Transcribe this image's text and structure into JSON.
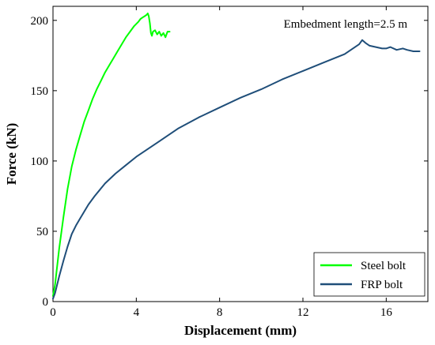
{
  "chart_data": {
    "type": "line",
    "title": "",
    "xlabel": "Displacement (mm)",
    "ylabel": "Force (kN)",
    "xlim": [
      0,
      18
    ],
    "ylim": [
      0,
      210
    ],
    "xticks": [
      0,
      4,
      8,
      12,
      16
    ],
    "yticks": [
      0,
      50,
      100,
      150,
      200
    ],
    "grid": false,
    "legend_position": "bottom-right",
    "annotation": "Embedment length=2.5  m",
    "series": [
      {
        "name": "Steel bolt",
        "color": "#00ff00",
        "x": [
          0,
          0.1,
          0.3,
          0.5,
          0.7,
          0.9,
          1.1,
          1.3,
          1.5,
          1.7,
          1.9,
          2.1,
          2.3,
          2.5,
          2.7,
          2.9,
          3.1,
          3.3,
          3.5,
          3.7,
          3.9,
          4.1,
          4.2,
          4.3,
          4.4,
          4.5,
          4.55,
          4.6,
          4.65,
          4.7,
          4.75,
          4.8,
          4.9,
          5.0,
          5.1,
          5.2,
          5.3,
          5.4,
          5.5,
          5.6
        ],
        "y": [
          4,
          12,
          38,
          60,
          80,
          96,
          108,
          118,
          128,
          136,
          144,
          151,
          157,
          163,
          168,
          173,
          178,
          183,
          188,
          192,
          196,
          199,
          201,
          202,
          203,
          204,
          205,
          203,
          198,
          191,
          189,
          192,
          193,
          190,
          192,
          189,
          191,
          188,
          192,
          192
        ]
      },
      {
        "name": "FRP bolt",
        "color": "#1f4e79",
        "x": [
          0,
          0.1,
          0.3,
          0.5,
          0.7,
          0.9,
          1.1,
          1.3,
          1.5,
          1.7,
          2.0,
          2.5,
          3.0,
          3.5,
          4.0,
          4.5,
          5.0,
          6.0,
          7.0,
          8.0,
          9.0,
          10.0,
          11.0,
          12.0,
          13.0,
          14.0,
          14.4,
          14.7,
          14.85,
          15.0,
          15.2,
          15.5,
          15.8,
          16.0,
          16.2,
          16.5,
          16.8,
          17.0,
          17.3,
          17.6
        ],
        "y": [
          2,
          6,
          18,
          29,
          39,
          48,
          54,
          59,
          64,
          69,
          75,
          84,
          91,
          97,
          103,
          108,
          113,
          123,
          131,
          138,
          145,
          151,
          158,
          164,
          170,
          176,
          180,
          183,
          186,
          184,
          182,
          181,
          180,
          180,
          181,
          179,
          180,
          179,
          178,
          178
        ]
      }
    ]
  }
}
